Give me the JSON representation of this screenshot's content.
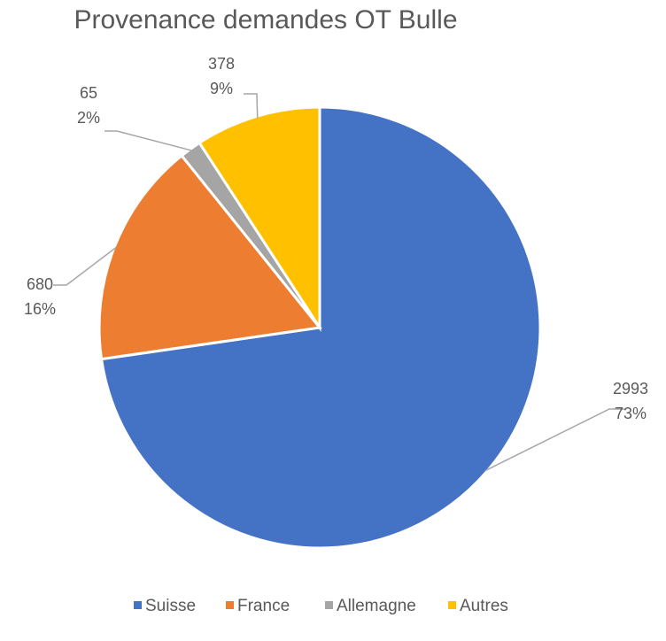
{
  "chart_data": {
    "type": "pie",
    "title": "Provenance demandes OT Bulle",
    "categories": [
      "Suisse",
      "France",
      "Allemagne",
      "Autres"
    ],
    "values": [
      2993,
      680,
      65,
      378
    ],
    "percent_labels": [
      "73%",
      "16%",
      "2%",
      "9%"
    ],
    "colors": [
      "#4472c4",
      "#ed7d31",
      "#a5a5a5",
      "#ffc000"
    ],
    "legend": "bottom"
  }
}
